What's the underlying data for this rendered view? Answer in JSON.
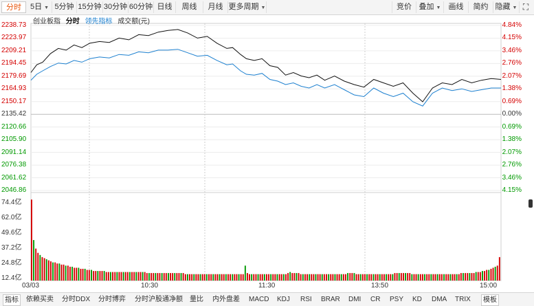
{
  "toolbar": {
    "left": [
      {
        "id": "fenshi",
        "label": "分时",
        "active": true
      },
      {
        "id": "5d",
        "label": "5日",
        "caret": true
      },
      {
        "id": "5m",
        "label": "5分钟"
      },
      {
        "id": "15m",
        "label": "15分钟"
      },
      {
        "id": "30m",
        "label": "30分钟"
      },
      {
        "id": "60m",
        "label": "60分钟"
      },
      {
        "id": "day",
        "label": "日线"
      },
      {
        "id": "week",
        "label": "周线"
      },
      {
        "id": "month",
        "label": "月线"
      },
      {
        "id": "more",
        "label": "更多周期",
        "caret": true
      }
    ],
    "right": [
      {
        "id": "compare",
        "label": "竞价"
      },
      {
        "id": "overlay",
        "label": "叠加",
        "caret": true
      },
      {
        "id": "draw",
        "label": "画线"
      },
      {
        "id": "simple",
        "label": "简约"
      },
      {
        "id": "hide",
        "label": "隐藏",
        "caret": true
      }
    ],
    "fullscreen_icon": "fullscreen-icon"
  },
  "legend": {
    "name": "创业板指",
    "mode": "分时",
    "leading": "领先指标",
    "volume": "成交额(元)"
  },
  "axis": {
    "price_labels": [
      "2238.73",
      "2223.97",
      "2209.21",
      "2194.45",
      "2179.69",
      "2164.93",
      "2150.17",
      "2135.42",
      "2120.66",
      "2105.90",
      "2091.14",
      "2076.38",
      "2061.62",
      "2046.86"
    ],
    "pct_labels": [
      "4.84%",
      "4.15%",
      "3.46%",
      "2.76%",
      "2.07%",
      "1.38%",
      "0.69%",
      "0.00%",
      "0.69%",
      "1.38%",
      "2.07%",
      "2.76%",
      "3.46%",
      "4.15%"
    ],
    "volume_labels": [
      "74.4亿",
      "62.0亿",
      "49.6亿",
      "37.2亿",
      "24.8亿",
      "12.4亿"
    ],
    "time_labels": [
      "03/03",
      "10:30",
      "11:30",
      "13:50",
      "15:00"
    ]
  },
  "chart_data": {
    "type": "line",
    "y_range": [
      2046.86,
      2238.73
    ],
    "base": 2135.42,
    "x_range": [
      0,
      240
    ],
    "series": [
      {
        "name": "分时",
        "color": "#111111",
        "x": [
          0,
          3,
          6,
          10,
          14,
          18,
          22,
          26,
          30,
          35,
          40,
          45,
          50,
          55,
          60,
          65,
          70,
          75,
          80,
          85,
          90,
          95,
          100,
          103,
          107,
          110,
          114,
          118,
          122,
          126,
          130,
          134,
          138,
          142,
          146,
          150,
          155,
          160,
          165,
          170,
          175,
          180,
          185,
          190,
          195,
          200,
          205,
          210,
          215,
          220,
          225,
          230,
          235,
          240
        ],
        "values": [
          2184,
          2193,
          2196,
          2206,
          2212,
          2210,
          2216,
          2213,
          2218,
          2220,
          2219,
          2224,
          2222,
          2228,
          2227,
          2231,
          2233,
          2234,
          2230,
          2224,
          2226,
          2218,
          2212,
          2213,
          2205,
          2200,
          2198,
          2200,
          2192,
          2190,
          2181,
          2184,
          2180,
          2178,
          2181,
          2175,
          2180,
          2174,
          2170,
          2167,
          2176,
          2172,
          2168,
          2172,
          2160,
          2150,
          2166,
          2172,
          2170,
          2176,
          2172,
          2175,
          2177,
          2176
        ]
      },
      {
        "name": "领先指标",
        "color": "#1b7fcf",
        "x": [
          0,
          3,
          6,
          10,
          14,
          18,
          22,
          26,
          30,
          35,
          40,
          45,
          50,
          55,
          60,
          65,
          70,
          75,
          80,
          85,
          90,
          95,
          100,
          103,
          107,
          110,
          114,
          118,
          122,
          126,
          130,
          134,
          138,
          142,
          146,
          150,
          155,
          160,
          165,
          170,
          175,
          180,
          185,
          190,
          195,
          200,
          205,
          210,
          215,
          220,
          225,
          230,
          235,
          240
        ],
        "values": [
          2175,
          2182,
          2186,
          2191,
          2195,
          2194,
          2198,
          2196,
          2200,
          2202,
          2201,
          2205,
          2204,
          2208,
          2207,
          2210,
          2210,
          2211,
          2207,
          2203,
          2204,
          2198,
          2193,
          2194,
          2186,
          2182,
          2181,
          2183,
          2176,
          2174,
          2170,
          2172,
          2168,
          2166,
          2170,
          2166,
          2170,
          2164,
          2158,
          2156,
          2166,
          2160,
          2156,
          2160,
          2150,
          2145,
          2160,
          2166,
          2163,
          2165,
          2162,
          2164,
          2166,
          2166
        ]
      }
    ],
    "volume": {
      "unit": "亿",
      "y_range": [
        0,
        80
      ],
      "values": [
        76,
        38,
        30,
        26,
        24,
        22,
        21,
        20,
        19,
        18,
        17,
        17,
        16,
        16,
        15,
        15,
        14,
        14,
        13,
        13,
        12,
        12,
        12,
        11,
        11,
        11,
        10,
        10,
        10,
        9,
        9,
        9,
        9,
        9,
        9,
        8,
        8,
        8,
        8,
        8,
        8,
        8,
        8,
        8,
        8,
        8,
        8,
        8,
        8,
        8,
        8,
        8,
        8,
        8,
        7,
        7,
        7,
        7,
        7,
        7,
        7,
        7,
        7,
        7,
        7,
        7,
        7,
        7,
        7,
        7,
        7,
        7,
        6,
        6,
        6,
        6,
        6,
        6,
        6,
        6,
        6,
        6,
        6,
        6,
        6,
        6,
        6,
        6,
        6,
        6,
        6,
        6,
        6,
        6,
        6,
        6,
        6,
        6,
        6,
        6,
        14,
        7,
        6,
        6,
        6,
        6,
        6,
        6,
        6,
        6,
        6,
        6,
        6,
        6,
        6,
        6,
        6,
        6,
        6,
        6,
        7,
        8,
        7,
        7,
        7,
        7,
        6,
        6,
        6,
        6,
        6,
        6,
        6,
        6,
        6,
        6,
        6,
        6,
        6,
        6,
        6,
        6,
        6,
        6,
        6,
        6,
        6,
        6,
        7,
        7,
        7,
        7,
        6,
        6,
        6,
        6,
        6,
        6,
        6,
        6,
        6,
        6,
        6,
        6,
        6,
        6,
        6,
        6,
        6,
        6,
        7,
        7,
        7,
        7,
        7,
        7,
        7,
        7,
        6,
        6,
        6,
        6,
        6,
        6,
        6,
        6,
        6,
        6,
        6,
        6,
        6,
        6,
        6,
        6,
        6,
        6,
        6,
        6,
        6,
        6,
        6,
        7,
        7,
        7,
        7,
        7,
        7,
        7,
        8,
        8,
        8,
        9,
        9,
        10,
        10,
        11,
        12,
        13,
        14,
        22
      ],
      "colors": "red/green alternating by price change"
    }
  },
  "bottombar": {
    "items": [
      {
        "id": "zb",
        "label": "指标",
        "active": true
      },
      {
        "id": "mmsx",
        "label": "依赖买卖"
      },
      {
        "id": "ddx",
        "label": "分时DDX"
      },
      {
        "id": "bo",
        "label": "分时博弈"
      },
      {
        "id": "hgt",
        "label": "分时沪股通净额"
      },
      {
        "id": "lb",
        "label": "量比"
      },
      {
        "id": "nwp",
        "label": "内外盘差"
      },
      {
        "id": "macd",
        "label": "MACD"
      },
      {
        "id": "kdj",
        "label": "KDJ"
      },
      {
        "id": "rsi",
        "label": "RSI"
      },
      {
        "id": "brar",
        "label": "BRAR"
      },
      {
        "id": "dmi",
        "label": "DMI"
      },
      {
        "id": "cr",
        "label": "CR"
      },
      {
        "id": "psy",
        "label": "PSY"
      },
      {
        "id": "kd",
        "label": "KD"
      },
      {
        "id": "dma",
        "label": "DMA"
      },
      {
        "id": "trix",
        "label": "TRIX"
      },
      {
        "id": "mb",
        "label": "模板",
        "active": true
      }
    ]
  },
  "colors": {
    "up": "#d40000",
    "down": "#009900",
    "line": "#111111",
    "lead": "#1b7fcf",
    "grid": "#e0e0e0",
    "accent": "#e8560d"
  }
}
